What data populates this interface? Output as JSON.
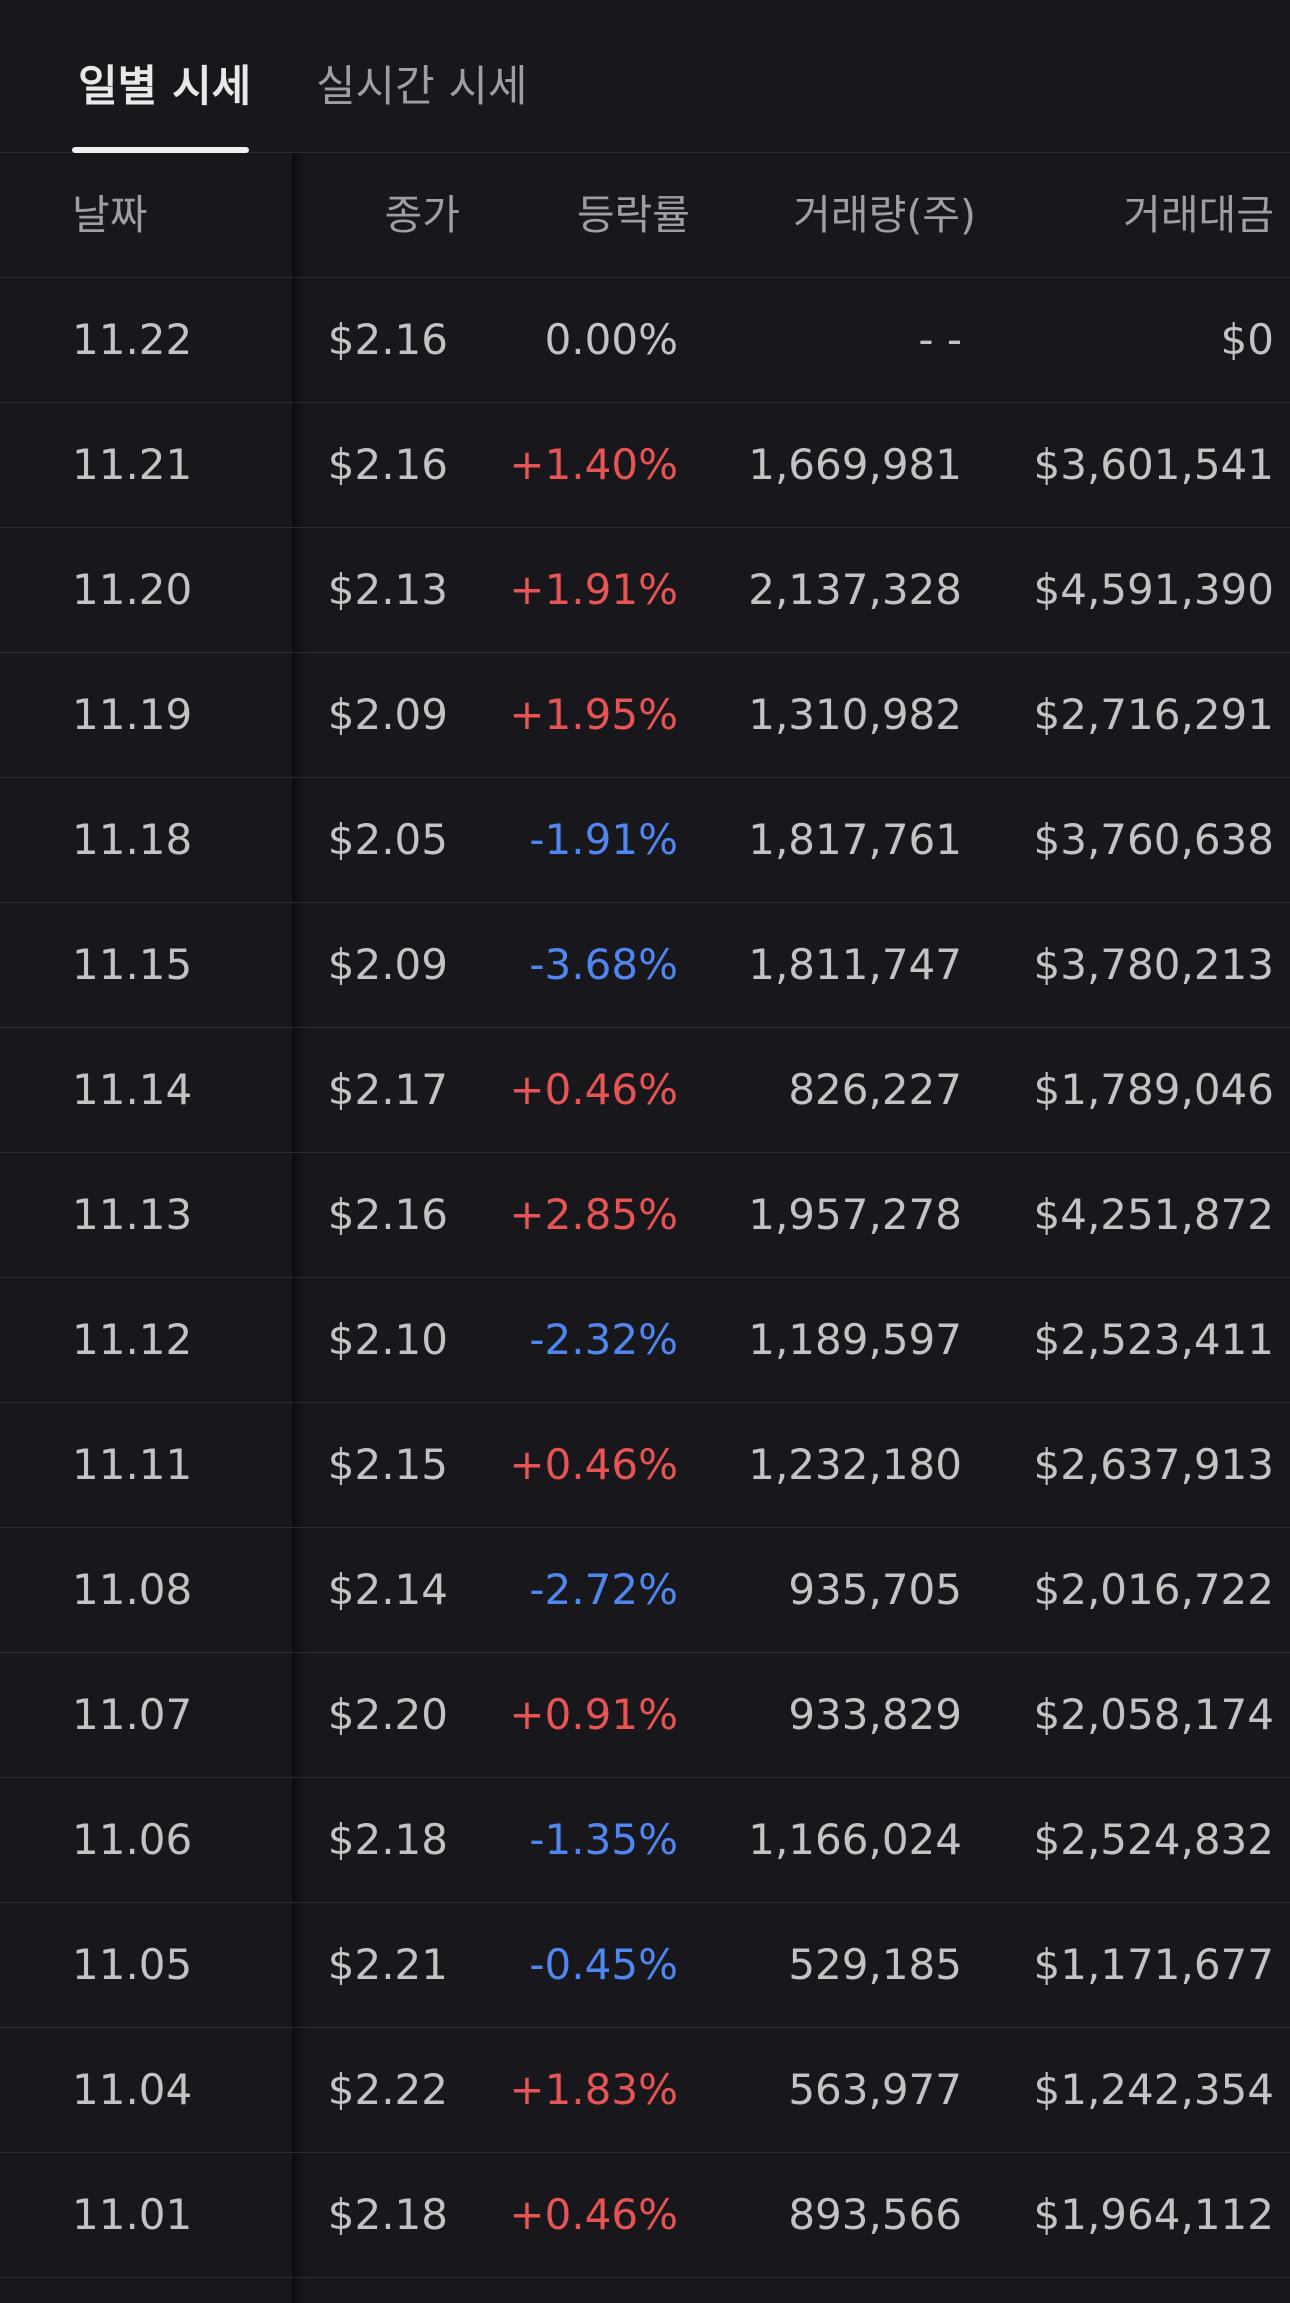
{
  "tabs": {
    "daily": "일별 시세",
    "realtime": "실시간 시세"
  },
  "headers": {
    "date": "날짜",
    "close": "종가",
    "change": "등락률",
    "volume": "거래량(주)",
    "value": "거래대금"
  },
  "colors": {
    "up": "#e85454",
    "down": "#4f86f0",
    "flat": "#c3c3c6"
  },
  "rows": [
    {
      "date": "11.22",
      "close": "$2.16",
      "change": "0.00%",
      "dir": "flat",
      "volume": "- -",
      "value": "$0"
    },
    {
      "date": "11.21",
      "close": "$2.16",
      "change": "+1.40%",
      "dir": "up",
      "volume": "1,669,981",
      "value": "$3,601,541"
    },
    {
      "date": "11.20",
      "close": "$2.13",
      "change": "+1.91%",
      "dir": "up",
      "volume": "2,137,328",
      "value": "$4,591,390"
    },
    {
      "date": "11.19",
      "close": "$2.09",
      "change": "+1.95%",
      "dir": "up",
      "volume": "1,310,982",
      "value": "$2,716,291"
    },
    {
      "date": "11.18",
      "close": "$2.05",
      "change": "-1.91%",
      "dir": "down",
      "volume": "1,817,761",
      "value": "$3,760,638"
    },
    {
      "date": "11.15",
      "close": "$2.09",
      "change": "-3.68%",
      "dir": "down",
      "volume": "1,811,747",
      "value": "$3,780,213"
    },
    {
      "date": "11.14",
      "close": "$2.17",
      "change": "+0.46%",
      "dir": "up",
      "volume": "826,227",
      "value": "$1,789,046"
    },
    {
      "date": "11.13",
      "close": "$2.16",
      "change": "+2.85%",
      "dir": "up",
      "volume": "1,957,278",
      "value": "$4,251,872"
    },
    {
      "date": "11.12",
      "close": "$2.10",
      "change": "-2.32%",
      "dir": "down",
      "volume": "1,189,597",
      "value": "$2,523,411"
    },
    {
      "date": "11.11",
      "close": "$2.15",
      "change": "+0.46%",
      "dir": "up",
      "volume": "1,232,180",
      "value": "$2,637,913"
    },
    {
      "date": "11.08",
      "close": "$2.14",
      "change": "-2.72%",
      "dir": "down",
      "volume": "935,705",
      "value": "$2,016,722"
    },
    {
      "date": "11.07",
      "close": "$2.20",
      "change": "+0.91%",
      "dir": "up",
      "volume": "933,829",
      "value": "$2,058,174"
    },
    {
      "date": "11.06",
      "close": "$2.18",
      "change": "-1.35%",
      "dir": "down",
      "volume": "1,166,024",
      "value": "$2,524,832"
    },
    {
      "date": "11.05",
      "close": "$2.21",
      "change": "-0.45%",
      "dir": "down",
      "volume": "529,185",
      "value": "$1,171,677"
    },
    {
      "date": "11.04",
      "close": "$2.22",
      "change": "+1.83%",
      "dir": "up",
      "volume": "563,977",
      "value": "$1,242,354"
    },
    {
      "date": "11.01",
      "close": "$2.18",
      "change": "+0.46%",
      "dir": "up",
      "volume": "893,566",
      "value": "$1,964,112"
    }
  ]
}
